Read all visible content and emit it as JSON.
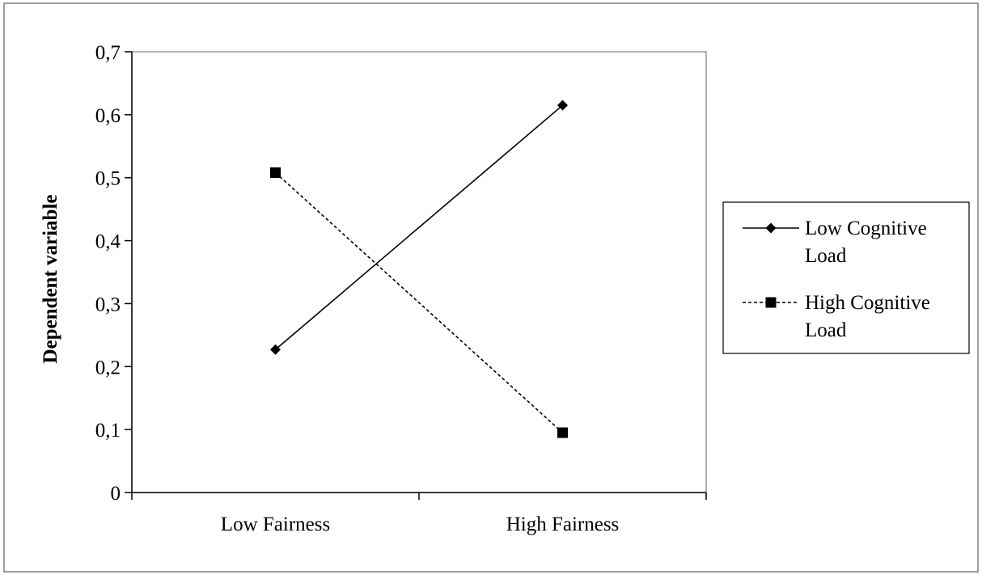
{
  "chart_data": {
    "type": "line",
    "categories": [
      "Low Fairness",
      "High Fairness"
    ],
    "ylabel": "Dependent variable",
    "xlabel": "",
    "ylim": [
      0,
      0.7
    ],
    "yticks": [
      0,
      0.1,
      0.2,
      0.3,
      0.4,
      0.5,
      0.6,
      0.7
    ],
    "ytick_labels": [
      "0",
      "0,1",
      "0,2",
      "0,3",
      "0,4",
      "0,5",
      "0,6",
      "0,7"
    ],
    "grid": false,
    "legend_position": "right",
    "series": [
      {
        "name_lines": [
          "Low Cognitive",
          "Load"
        ],
        "values": [
          0.227,
          0.615
        ],
        "line_style": "solid",
        "marker": "diamond",
        "color": "#000000"
      },
      {
        "name_lines": [
          "High Cognitive",
          "Load"
        ],
        "values": [
          0.508,
          0.095
        ],
        "line_style": "dashed",
        "marker": "square",
        "color": "#000000"
      }
    ]
  }
}
